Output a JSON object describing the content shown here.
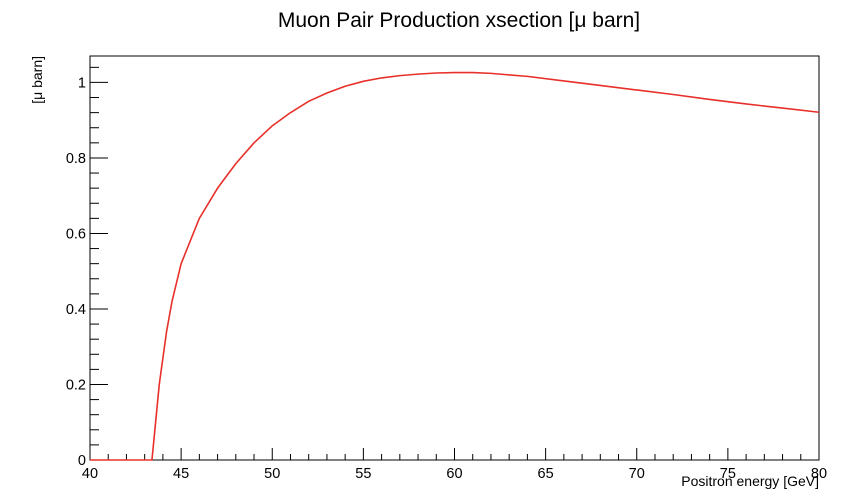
{
  "chart_data": {
    "type": "line",
    "title": "Muon Pair Production xsection [μ barn]",
    "xlabel": "Positron energy [GeV]",
    "ylabel": "[μ barn]",
    "xlim": [
      40,
      80
    ],
    "ylim": [
      0,
      1.07
    ],
    "grid": false,
    "x_ticks": [
      "40",
      "45",
      "50",
      "55",
      "60",
      "65",
      "70",
      "75",
      "80"
    ],
    "y_ticks": [
      "0",
      "0.2",
      "0.4",
      "0.6",
      "0.8",
      "1"
    ],
    "series": [
      {
        "color": "#e8302a",
        "x": [
          40,
          43.4,
          43.6,
          43.8,
          44.2,
          44.5,
          45,
          46,
          47,
          48,
          49,
          50,
          51,
          52,
          53,
          54,
          55,
          56,
          57,
          58,
          59,
          60,
          61,
          62,
          64,
          66,
          68,
          70,
          72,
          74,
          76,
          78,
          80
        ],
        "y": [
          0,
          0,
          0.1,
          0.2,
          0.34,
          0.42,
          0.52,
          0.64,
          0.72,
          0.785,
          0.84,
          0.885,
          0.92,
          0.95,
          0.972,
          0.99,
          1.003,
          1.012,
          1.018,
          1.022,
          1.025,
          1.026,
          1.026,
          1.024,
          1.016,
          1.004,
          0.992,
          0.98,
          0.968,
          0.955,
          0.943,
          0.932,
          0.921
        ]
      }
    ]
  }
}
